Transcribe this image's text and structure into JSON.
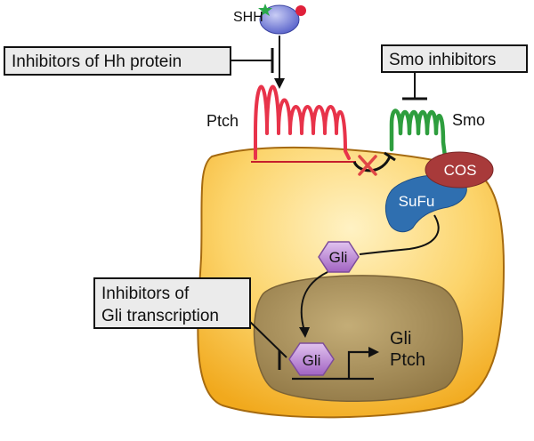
{
  "labels": {
    "shh": "SHH",
    "ptch": "Ptch",
    "smo": "Smo",
    "cos": "COS",
    "sufu": "SuFu",
    "gli_cytoplasm": "Gli",
    "gli_nucleus": "Gli",
    "target_gene_1": "Gli",
    "target_gene_2": "Ptch"
  },
  "inhibitor_boxes": {
    "hh_protein": "Inhibitors of Hh protein",
    "smo": "Smo inhibitors",
    "gli_line_1": "Inhibitors of",
    "gli_line_2": "Gli transcription"
  },
  "colors": {
    "cell": "#f7b733",
    "cell_light": "#fde9a6",
    "nucleus": "#a8905a",
    "ptch": "#e8334a",
    "smo": "#2e9e3e",
    "cos": "#a83a3a",
    "sufu": "#2f6fb0",
    "gli": "#b77ad0",
    "box_fill": "#ebebeb"
  }
}
